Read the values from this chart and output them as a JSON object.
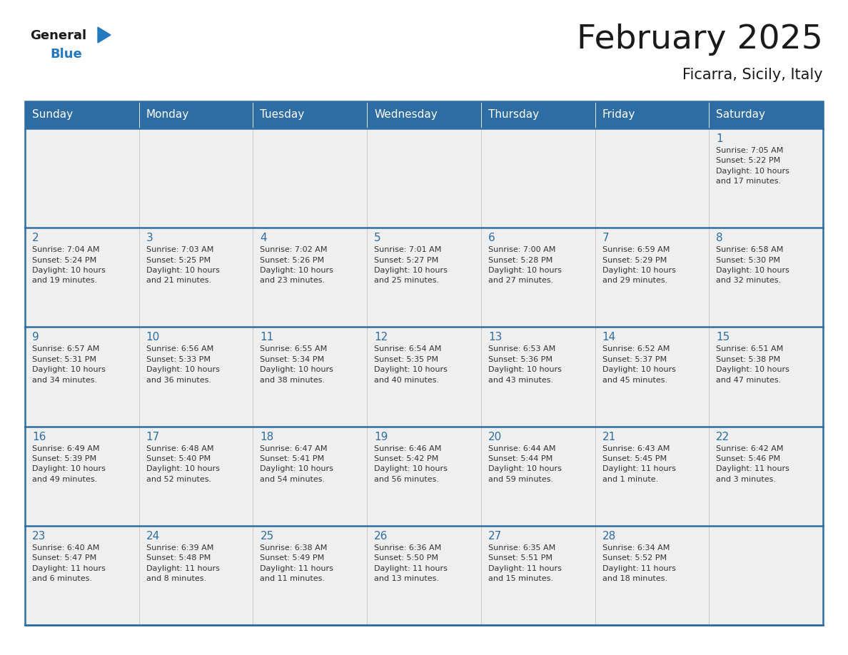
{
  "title": "February 2025",
  "subtitle": "Ficarra, Sicily, Italy",
  "days_of_week": [
    "Sunday",
    "Monday",
    "Tuesday",
    "Wednesday",
    "Thursday",
    "Friday",
    "Saturday"
  ],
  "header_bg": "#2E6DA4",
  "header_text": "#FFFFFF",
  "cell_bg": "#EFEFEF",
  "cell_bg_white": "#FFFFFF",
  "day_number_color": "#2E6DA4",
  "info_text_color": "#333333",
  "border_color": "#2E6DA4",
  "title_color": "#1a1a1a",
  "logo_general_color": "#1a1a1a",
  "logo_blue_color": "#2479BF",
  "weeks": [
    [
      {
        "day": null,
        "info": ""
      },
      {
        "day": null,
        "info": ""
      },
      {
        "day": null,
        "info": ""
      },
      {
        "day": null,
        "info": ""
      },
      {
        "day": null,
        "info": ""
      },
      {
        "day": null,
        "info": ""
      },
      {
        "day": 1,
        "info": "Sunrise: 7:05 AM\nSunset: 5:22 PM\nDaylight: 10 hours\nand 17 minutes."
      }
    ],
    [
      {
        "day": 2,
        "info": "Sunrise: 7:04 AM\nSunset: 5:24 PM\nDaylight: 10 hours\nand 19 minutes."
      },
      {
        "day": 3,
        "info": "Sunrise: 7:03 AM\nSunset: 5:25 PM\nDaylight: 10 hours\nand 21 minutes."
      },
      {
        "day": 4,
        "info": "Sunrise: 7:02 AM\nSunset: 5:26 PM\nDaylight: 10 hours\nand 23 minutes."
      },
      {
        "day": 5,
        "info": "Sunrise: 7:01 AM\nSunset: 5:27 PM\nDaylight: 10 hours\nand 25 minutes."
      },
      {
        "day": 6,
        "info": "Sunrise: 7:00 AM\nSunset: 5:28 PM\nDaylight: 10 hours\nand 27 minutes."
      },
      {
        "day": 7,
        "info": "Sunrise: 6:59 AM\nSunset: 5:29 PM\nDaylight: 10 hours\nand 29 minutes."
      },
      {
        "day": 8,
        "info": "Sunrise: 6:58 AM\nSunset: 5:30 PM\nDaylight: 10 hours\nand 32 minutes."
      }
    ],
    [
      {
        "day": 9,
        "info": "Sunrise: 6:57 AM\nSunset: 5:31 PM\nDaylight: 10 hours\nand 34 minutes."
      },
      {
        "day": 10,
        "info": "Sunrise: 6:56 AM\nSunset: 5:33 PM\nDaylight: 10 hours\nand 36 minutes."
      },
      {
        "day": 11,
        "info": "Sunrise: 6:55 AM\nSunset: 5:34 PM\nDaylight: 10 hours\nand 38 minutes."
      },
      {
        "day": 12,
        "info": "Sunrise: 6:54 AM\nSunset: 5:35 PM\nDaylight: 10 hours\nand 40 minutes."
      },
      {
        "day": 13,
        "info": "Sunrise: 6:53 AM\nSunset: 5:36 PM\nDaylight: 10 hours\nand 43 minutes."
      },
      {
        "day": 14,
        "info": "Sunrise: 6:52 AM\nSunset: 5:37 PM\nDaylight: 10 hours\nand 45 minutes."
      },
      {
        "day": 15,
        "info": "Sunrise: 6:51 AM\nSunset: 5:38 PM\nDaylight: 10 hours\nand 47 minutes."
      }
    ],
    [
      {
        "day": 16,
        "info": "Sunrise: 6:49 AM\nSunset: 5:39 PM\nDaylight: 10 hours\nand 49 minutes."
      },
      {
        "day": 17,
        "info": "Sunrise: 6:48 AM\nSunset: 5:40 PM\nDaylight: 10 hours\nand 52 minutes."
      },
      {
        "day": 18,
        "info": "Sunrise: 6:47 AM\nSunset: 5:41 PM\nDaylight: 10 hours\nand 54 minutes."
      },
      {
        "day": 19,
        "info": "Sunrise: 6:46 AM\nSunset: 5:42 PM\nDaylight: 10 hours\nand 56 minutes."
      },
      {
        "day": 20,
        "info": "Sunrise: 6:44 AM\nSunset: 5:44 PM\nDaylight: 10 hours\nand 59 minutes."
      },
      {
        "day": 21,
        "info": "Sunrise: 6:43 AM\nSunset: 5:45 PM\nDaylight: 11 hours\nand 1 minute."
      },
      {
        "day": 22,
        "info": "Sunrise: 6:42 AM\nSunset: 5:46 PM\nDaylight: 11 hours\nand 3 minutes."
      }
    ],
    [
      {
        "day": 23,
        "info": "Sunrise: 6:40 AM\nSunset: 5:47 PM\nDaylight: 11 hours\nand 6 minutes."
      },
      {
        "day": 24,
        "info": "Sunrise: 6:39 AM\nSunset: 5:48 PM\nDaylight: 11 hours\nand 8 minutes."
      },
      {
        "day": 25,
        "info": "Sunrise: 6:38 AM\nSunset: 5:49 PM\nDaylight: 11 hours\nand 11 minutes."
      },
      {
        "day": 26,
        "info": "Sunrise: 6:36 AM\nSunset: 5:50 PM\nDaylight: 11 hours\nand 13 minutes."
      },
      {
        "day": 27,
        "info": "Sunrise: 6:35 AM\nSunset: 5:51 PM\nDaylight: 11 hours\nand 15 minutes."
      },
      {
        "day": 28,
        "info": "Sunrise: 6:34 AM\nSunset: 5:52 PM\nDaylight: 11 hours\nand 18 minutes."
      },
      {
        "day": null,
        "info": ""
      }
    ]
  ],
  "figwidth": 11.88,
  "figheight": 9.18,
  "dpi": 100
}
